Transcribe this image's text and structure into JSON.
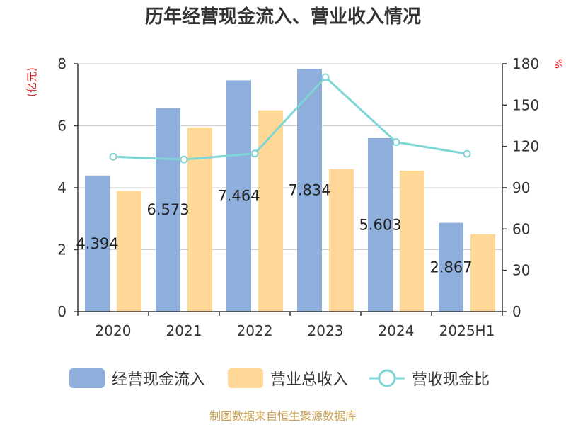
{
  "chart_data": {
    "type": "bar",
    "title": "历年经营现金流入、营业收入情况",
    "categories": [
      "2020",
      "2021",
      "2022",
      "2023",
      "2024",
      "2025H1"
    ],
    "y_left_label": "(亿元)",
    "y_right_label": "%",
    "y_left_lim": [
      0,
      8
    ],
    "y_left_ticks": [
      "0",
      "2",
      "4",
      "6",
      "8"
    ],
    "y_right_lim": [
      0,
      180
    ],
    "y_right_ticks": [
      "0",
      "30",
      "60",
      "90",
      "120",
      "150",
      "180"
    ],
    "grid": true,
    "legend_position": "bottom",
    "series": [
      {
        "name": "经营现金流入",
        "type": "bar",
        "axis": "left",
        "color": "#8eaedb",
        "values": [
          4.394,
          6.573,
          7.464,
          7.834,
          5.603,
          2.867
        ],
        "labels": [
          "4.394",
          "6.573",
          "7.464",
          "7.834",
          "5.603",
          "2.867"
        ]
      },
      {
        "name": "营业总收入",
        "type": "bar",
        "axis": "left",
        "color": "#ffd898",
        "values": [
          3.9,
          5.95,
          6.5,
          4.6,
          4.55,
          2.5
        ]
      },
      {
        "name": "营收现金比",
        "type": "line",
        "axis": "right",
        "color": "#7fd4d4",
        "values": [
          112.5,
          110.5,
          114.8,
          170.3,
          123.1,
          114.6
        ]
      }
    ]
  },
  "colors": {
    "title": "#333333",
    "axis_label": "#e02020",
    "tick": "#333333",
    "grid": "#cccccc",
    "source": "#c8a050"
  },
  "source_text": "制图数据来自恒生聚源数据库"
}
